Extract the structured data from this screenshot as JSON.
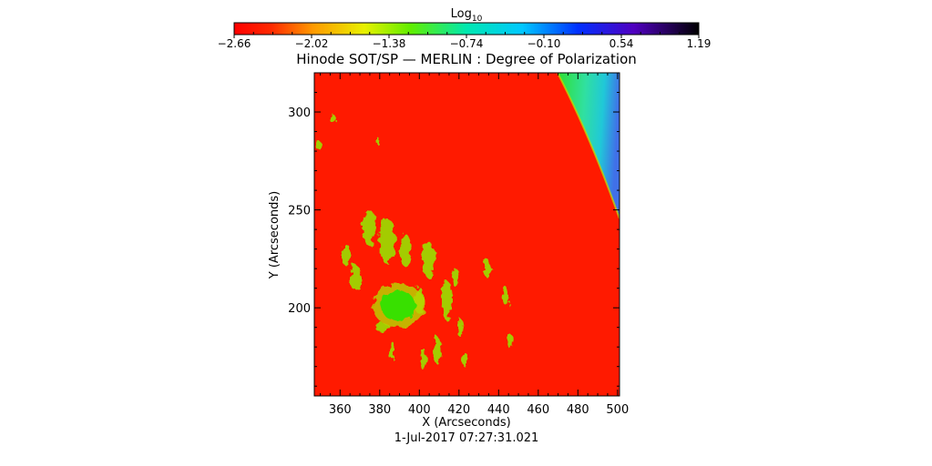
{
  "chart_data": {
    "type": "heatmap",
    "title": "Hinode SOT/SP — MERLIN : Degree of Polarization",
    "xlabel": "X (Arcseconds)",
    "ylabel": "Y (Arcseconds)",
    "timestamp": "1-Jul-2017 07:27:31.021",
    "xlim": [
      347,
      501
    ],
    "ylim": [
      155,
      320
    ],
    "x_ticks": [
      360,
      380,
      400,
      420,
      440,
      460,
      480,
      500
    ],
    "y_ticks": [
      200,
      250,
      300
    ],
    "colorbar": {
      "label_base": "Log",
      "label_sub": "10",
      "ticks": [
        "−2.66",
        "−2.02",
        "−1.38",
        "−0.74",
        "−0.10",
        "0.54",
        "1.19"
      ],
      "range": [
        -2.66,
        1.19
      ]
    },
    "colors": {
      "background": "#ff1a00",
      "patch": "#8ee000",
      "core": "#38e000",
      "limb_green": "#30e030",
      "limb_cyan": "#20c8d8",
      "limb_blue": "#4070e8"
    }
  }
}
